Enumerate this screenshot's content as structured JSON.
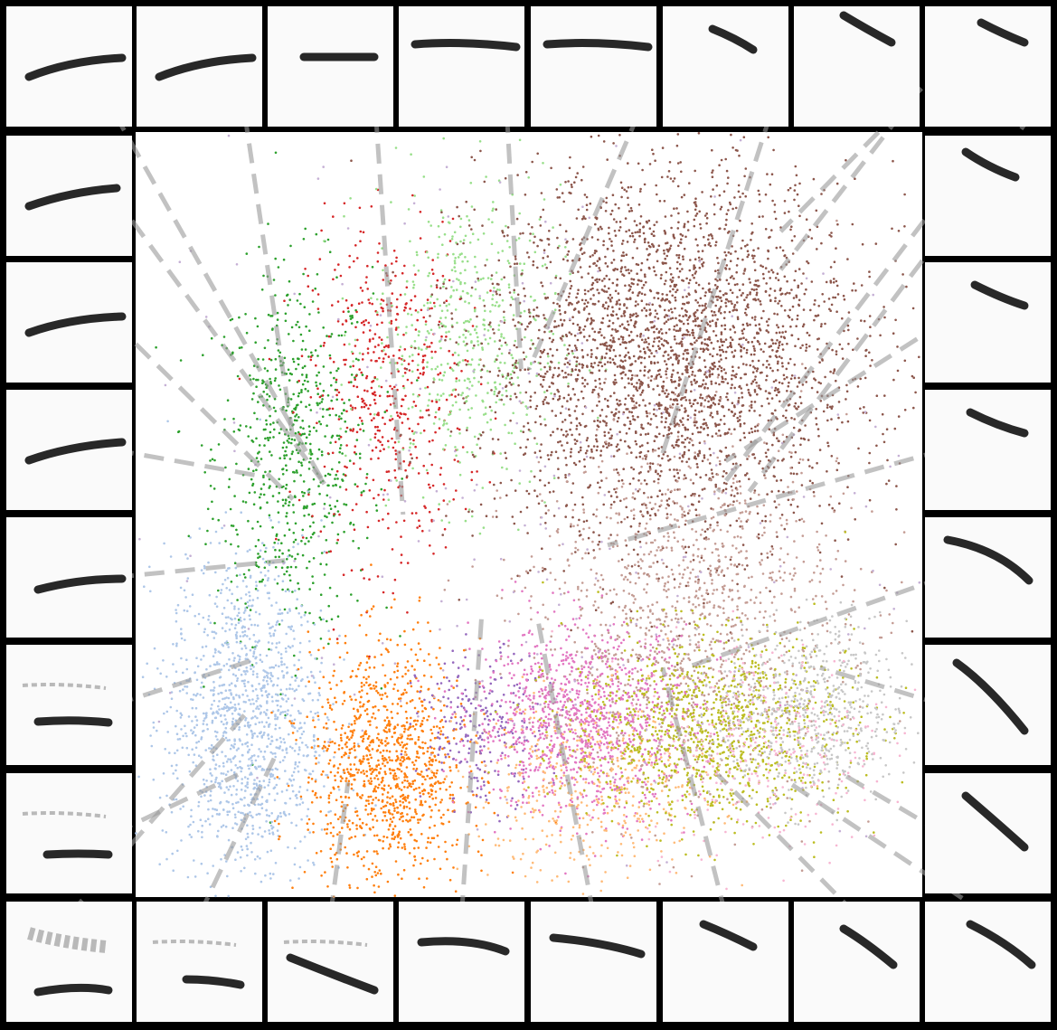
{
  "chart_data": {
    "type": "scatter",
    "title": "",
    "xlabel": "",
    "ylabel": "",
    "xlim": [
      0,
      100
    ],
    "ylim": [
      0,
      100
    ],
    "grid": false,
    "legend": "none",
    "series": [
      {
        "color": "#2ca02c",
        "center": [
          20,
          58
        ],
        "spread": [
          5,
          12
        ],
        "count": 700
      },
      {
        "color": "#d62728",
        "center": [
          32,
          66
        ],
        "spread": [
          5,
          11
        ],
        "count": 520
      },
      {
        "color": "#98df8a",
        "center": [
          42,
          73
        ],
        "spread": [
          6,
          10
        ],
        "count": 560
      },
      {
        "color": "#8c564b",
        "center": [
          68,
          71
        ],
        "spread": [
          12,
          12
        ],
        "count": 3200
      },
      {
        "color": "#c49c94",
        "center": [
          70,
          37
        ],
        "spread": [
          10,
          12
        ],
        "count": 1300
      },
      {
        "color": "#aec7e8",
        "center": [
          14,
          23
        ],
        "spread": [
          5,
          11
        ],
        "count": 1300
      },
      {
        "color": "#ff7f0e",
        "center": [
          32,
          17
        ],
        "spread": [
          5,
          8
        ],
        "count": 1100
      },
      {
        "color": "#9467bd",
        "center": [
          44,
          22
        ],
        "spread": [
          4,
          5
        ],
        "count": 250
      },
      {
        "color": "#e377c2",
        "center": [
          57,
          23
        ],
        "spread": [
          7,
          6
        ],
        "count": 1100
      },
      {
        "color": "#ffbb78",
        "center": [
          58,
          14
        ],
        "spread": [
          8,
          6
        ],
        "count": 450
      },
      {
        "color": "#bcbd22",
        "center": [
          73,
          22
        ],
        "spread": [
          9,
          6
        ],
        "count": 1100
      },
      {
        "color": "#c7c7c7",
        "center": [
          86,
          24
        ],
        "spread": [
          6,
          6
        ],
        "count": 600
      },
      {
        "color": "#f7b6d2",
        "center": [
          80,
          20
        ],
        "spread": [
          8,
          7
        ],
        "count": 300
      },
      {
        "color": "#c5b0d5",
        "center": [
          50,
          50
        ],
        "spread": [
          25,
          25
        ],
        "count": 300
      }
    ],
    "exemplar_links": [
      {
        "thumb": "top-0",
        "point": [
          24,
          54
        ]
      },
      {
        "thumb": "top-1",
        "point": [
          20,
          60
        ]
      },
      {
        "thumb": "top-2",
        "point": [
          34,
          50
        ]
      },
      {
        "thumb": "top-3",
        "point": [
          49,
          69
        ]
      },
      {
        "thumb": "top-4",
        "point": [
          50,
          69
        ]
      },
      {
        "thumb": "top-5",
        "point": [
          67,
          58
        ]
      },
      {
        "thumb": "top-6",
        "point": [
          82,
          82
        ]
      },
      {
        "thumb": "top-7",
        "point": [
          78,
          53
        ]
      },
      {
        "thumb": "left-0",
        "point": [
          24,
          54
        ]
      },
      {
        "thumb": "left-1",
        "point": [
          20,
          52
        ]
      },
      {
        "thumb": "left-2",
        "point": [
          16,
          55
        ]
      },
      {
        "thumb": "left-3",
        "point": [
          19,
          44
        ]
      },
      {
        "thumb": "left-4",
        "point": [
          15,
          31
        ]
      },
      {
        "thumb": "left-5",
        "point": [
          13,
          16
        ]
      },
      {
        "thumb": "right-0",
        "point": [
          82,
          87
        ]
      },
      {
        "thumb": "right-1",
        "point": [
          74,
          53
        ]
      },
      {
        "thumb": "right-2",
        "point": [
          75,
          57
        ]
      },
      {
        "thumb": "right-3",
        "point": [
          60,
          46
        ]
      },
      {
        "thumb": "right-4",
        "point": [
          70,
          30
        ]
      },
      {
        "thumb": "right-5",
        "point": [
          87,
          30
        ]
      },
      {
        "thumb": "right-6",
        "point": [
          90,
          16
        ]
      },
      {
        "thumb": "bottom-0",
        "point": [
          14,
          24
        ]
      },
      {
        "thumb": "bottom-1",
        "point": [
          18,
          19
        ]
      },
      {
        "thumb": "bottom-2",
        "point": [
          27,
          15
        ]
      },
      {
        "thumb": "bottom-3",
        "point": [
          44,
          37
        ]
      },
      {
        "thumb": "bottom-4",
        "point": [
          51,
          37
        ]
      },
      {
        "thumb": "bottom-5",
        "point": [
          67,
          30
        ]
      },
      {
        "thumb": "bottom-6",
        "point": [
          74,
          16
        ]
      },
      {
        "thumb": "bottom-7",
        "point": [
          83,
          15
        ]
      }
    ]
  }
}
